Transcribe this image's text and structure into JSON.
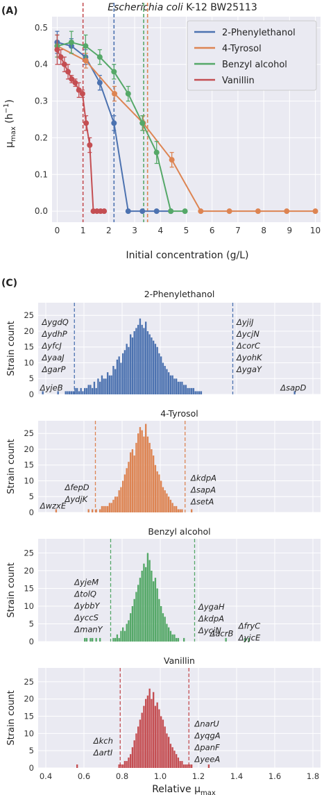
{
  "panel_a": {
    "letter": "(A)",
    "title_italic": "Escherichia coli",
    "title_rest": " K-12 BW25113",
    "xlabel": "Initial concentration (g/L)",
    "ylabel_main": "μ",
    "ylabel_sub": "max",
    "ylabel_unit_open": " (h",
    "ylabel_unit_exp": "−1",
    "ylabel_unit_close": ")"
  },
  "panel_c": {
    "letter": "(C)",
    "ylabel": "Strain count",
    "xlabel_main": "Relative μ",
    "xlabel_sub": "max"
  },
  "colors": {
    "2-Phenylethanol": "#4c72b0",
    "4-Tyrosol": "#dd8452",
    "Benzyl alcohol": "#55a868",
    "Vanillin": "#c44e52"
  },
  "chart_data": [
    {
      "type": "line",
      "title": "Escherichia coli K-12 BW25113",
      "xlabel": "Initial concentration (g/L)",
      "ylabel": "μmax (h−1)",
      "xlim": [
        -0.2,
        10.2
      ],
      "ylim": [
        -0.03,
        0.53
      ],
      "xticks": [
        0,
        1,
        2,
        3,
        4,
        5,
        6,
        7,
        8,
        9,
        10
      ],
      "yticks": [
        0.0,
        0.1,
        0.2,
        0.3,
        0.4,
        0.5
      ],
      "grid": true,
      "legend": "top-right",
      "series": [
        {
          "name": "2-Phenylethanol",
          "x": [
            0,
            0.55,
            1.1,
            1.65,
            2.2,
            2.75,
            3.3,
            3.85,
            4.4
          ],
          "y": [
            0.46,
            0.45,
            0.42,
            0.35,
            0.24,
            0.0,
            0.0,
            0.0,
            0.0
          ],
          "err": [
            0.03,
            0.02,
            0.02,
            0.02,
            0.02,
            0,
            0,
            0,
            0
          ],
          "threshold": 2.2
        },
        {
          "name": "4-Tyrosol",
          "x": [
            0,
            1.11,
            2.22,
            3.33,
            4.44,
            5.56,
            6.67,
            7.78,
            8.89,
            10.0
          ],
          "y": [
            0.45,
            0.41,
            0.32,
            0.24,
            0.14,
            0.0,
            0.0,
            0.0,
            0.0,
            0.0
          ],
          "err": [
            0.03,
            0.02,
            0.02,
            0.02,
            0.02,
            0,
            0,
            0,
            0,
            0
          ],
          "threshold": 3.5
        },
        {
          "name": "Benzyl alcohol",
          "x": [
            0,
            0.55,
            1.1,
            1.65,
            2.2,
            2.75,
            3.3,
            3.85,
            4.4,
            4.95
          ],
          "y": [
            0.45,
            0.46,
            0.45,
            0.42,
            0.38,
            0.32,
            0.24,
            0.16,
            0.0,
            0.0
          ],
          "err": [
            0.03,
            0.03,
            0.03,
            0.02,
            0.02,
            0.02,
            0.02,
            0.03,
            0,
            0
          ],
          "threshold": 3.35
        },
        {
          "name": "Vanillin",
          "x": [
            0,
            0.14,
            0.28,
            0.42,
            0.56,
            0.7,
            0.84,
            0.98,
            1.12,
            1.26,
            1.4,
            1.54,
            1.68,
            1.82
          ],
          "y": [
            0.44,
            0.42,
            0.4,
            0.38,
            0.36,
            0.35,
            0.33,
            0.32,
            0.24,
            0.18,
            0.0,
            0.0,
            0.0,
            0.0
          ],
          "err": [
            0.04,
            0.02,
            0.02,
            0.02,
            0.01,
            0.01,
            0.02,
            0.01,
            0.02,
            0.02,
            0,
            0,
            0,
            0
          ],
          "threshold": 1.0
        }
      ]
    },
    {
      "type": "bar",
      "subplots": [
        {
          "title": "2-Phenylethanol",
          "xlim": [
            0.36,
            1.84
          ],
          "ylim": [
            0,
            29
          ],
          "xticks": [
            0.4,
            0.6,
            0.8,
            1.0,
            1.2,
            1.4,
            1.6,
            1.8
          ],
          "yticks": [
            0,
            5,
            10,
            15,
            20,
            25
          ],
          "bin_start": 0.38,
          "bin_width": 0.01,
          "counts": [
            1,
            0,
            0,
            0,
            0,
            0,
            0,
            0,
            1,
            0,
            0,
            0,
            1,
            1,
            1,
            1,
            1,
            2,
            2,
            1,
            2,
            1,
            2,
            2,
            3,
            3,
            2,
            4,
            2,
            5,
            4,
            6,
            5,
            5,
            7,
            6,
            6,
            9,
            8,
            11,
            12,
            10,
            13,
            14,
            16,
            15,
            19,
            18,
            20,
            21,
            22,
            24,
            22,
            21,
            23,
            20,
            19,
            18,
            17,
            16,
            15,
            13,
            12,
            10,
            9,
            8,
            7,
            6,
            6,
            5,
            5,
            4,
            4,
            4,
            3,
            3,
            2,
            2,
            2,
            2,
            1,
            1,
            1,
            1,
            0,
            0,
            0,
            0,
            0,
            0,
            0,
            0,
            0,
            0,
            0,
            0,
            0,
            0,
            0,
            0,
            0,
            0,
            0,
            0,
            0,
            0,
            0,
            0,
            0,
            0,
            0,
            0,
            0,
            0,
            0,
            0,
            0,
            0,
            0,
            0,
            0,
            0,
            0,
            0,
            0,
            0,
            0,
            0,
            0,
            0,
            0,
            0,
            1
          ],
          "thresholds": [
            0.55,
            1.38
          ],
          "annotations": [
            {
              "lines": [
                "ΔyjeB"
              ],
              "x": 0.37,
              "anchor": "start",
              "y": 1.2
            },
            {
              "lines": [
                "ΔygdQ",
                "ΔydhP",
                "ΔyfcJ",
                "ΔyaaJ",
                "ΔgarP"
              ],
              "x": 0.38,
              "anchor": "start",
              "y": 22
            },
            {
              "lines": [
                "ΔyjiJ",
                "ΔycjN",
                "ΔcorC",
                "ΔyohK",
                "ΔygaY"
              ],
              "x": 1.4,
              "anchor": "start",
              "y": 22
            },
            {
              "lines": [
                "ΔsapD"
              ],
              "x": 1.63,
              "anchor": "start",
              "y": 1.2
            }
          ]
        },
        {
          "title": "4-Tyrosol",
          "xlim": [
            0.36,
            1.84
          ],
          "ylim": [
            0,
            29
          ],
          "xticks": [
            0.4,
            0.6,
            0.8,
            1.0,
            1.2,
            1.4,
            1.6,
            1.8
          ],
          "yticks": [
            0,
            5,
            10,
            15,
            20,
            25
          ],
          "bin_start": 0.38,
          "bin_width": 0.01,
          "counts": [
            0,
            0,
            0,
            0,
            0,
            0,
            0,
            1,
            0,
            0,
            0,
            0,
            0,
            0,
            0,
            0,
            0,
            0,
            0,
            0,
            0,
            0,
            0,
            0,
            1,
            0,
            1,
            0,
            1,
            0,
            1,
            2,
            2,
            2,
            2,
            3,
            3,
            4,
            5,
            5,
            7,
            8,
            10,
            12,
            14,
            16,
            19,
            20,
            18,
            22,
            25,
            27,
            26,
            24,
            28,
            24,
            22,
            20,
            18,
            15,
            13,
            12,
            10,
            8,
            7,
            6,
            5,
            4,
            3,
            2,
            2,
            1,
            1,
            1,
            0,
            0,
            0,
            0,
            1
          ],
          "thresholds": [
            0.66,
            1.13
          ],
          "annotations": [
            {
              "lines": [
                "ΔwzxE"
              ],
              "x": 0.37,
              "anchor": "start",
              "y": 1.2
            },
            {
              "lines": [
                "ΔfepD",
                "ΔydjK"
              ],
              "x": 0.5,
              "anchor": "start",
              "y": 7
            },
            {
              "lines": [
                "ΔkdpA",
                "ΔsapA",
                "ΔsetA"
              ],
              "x": 1.16,
              "anchor": "start",
              "y": 10
            }
          ]
        },
        {
          "title": "Benzyl alcohol",
          "xlim": [
            0.36,
            1.84
          ],
          "ylim": [
            0,
            29
          ],
          "xticks": [
            0.4,
            0.6,
            0.8,
            1.0,
            1.2,
            1.4,
            1.6,
            1.8
          ],
          "yticks": [
            0,
            5,
            10,
            15,
            20,
            25
          ],
          "bin_start": 0.6,
          "bin_width": 0.01,
          "counts": [
            1,
            1,
            0,
            1,
            1,
            0,
            1,
            0,
            1,
            0,
            0,
            0,
            0,
            0,
            0,
            1,
            1,
            2,
            1,
            3,
            4,
            3,
            5,
            6,
            8,
            10,
            12,
            14,
            16,
            18,
            20,
            22,
            21,
            25,
            23,
            20,
            17,
            18,
            15,
            12,
            10,
            8,
            7,
            5,
            4,
            3,
            2,
            2,
            1,
            1,
            0,
            0,
            1,
            0,
            0,
            0,
            0,
            0,
            0,
            0,
            0,
            0,
            0,
            0,
            0,
            0,
            0,
            0,
            0,
            0,
            0,
            0,
            0,
            0,
            1,
            0,
            0,
            0,
            0,
            0,
            0,
            0,
            0,
            0,
            1,
            0,
            1
          ],
          "thresholds": [
            0.74,
            1.18
          ],
          "annotations": [
            {
              "lines": [
                "ΔyjeM",
                "ΔtolQ",
                "ΔybbY",
                "ΔyccS",
                "ΔmanY"
              ],
              "x": 0.55,
              "anchor": "start",
              "y": 16
            },
            {
              "lines": [
                "ΔygaH",
                "ΔkdpA",
                "ΔycjN"
              ],
              "x": 1.2,
              "anchor": "start",
              "y": 9
            },
            {
              "lines": [
                "ΔacrB"
              ],
              "x": 1.26,
              "anchor": "start",
              "y": 1.5
            },
            {
              "lines": [
                "ΔfryC",
                "ΔyjcE"
              ],
              "x": 1.41,
              "anchor": "start",
              "y": 3.6
            }
          ]
        },
        {
          "title": "Vanillin",
          "xlim": [
            0.36,
            1.84
          ],
          "ylim": [
            0,
            29
          ],
          "xticks": [
            0.4,
            0.6,
            0.8,
            1.0,
            1.2,
            1.4,
            1.6,
            1.8
          ],
          "yticks": [
            0,
            5,
            10,
            15,
            20,
            25
          ],
          "bin_start": 0.56,
          "bin_width": 0.01,
          "counts": [
            1,
            0,
            0,
            0,
            0,
            0,
            0,
            0,
            0,
            0,
            0,
            0,
            0,
            0,
            0,
            0,
            0,
            0,
            0,
            0,
            0,
            0,
            1,
            1,
            1,
            2,
            2,
            3,
            4,
            6,
            8,
            10,
            12,
            14,
            16,
            18,
            20,
            21,
            23,
            20,
            22,
            18,
            19,
            17,
            15,
            14,
            12,
            10,
            9,
            7,
            6,
            5,
            4,
            3,
            2,
            2,
            1,
            1,
            1,
            1,
            1,
            0,
            0,
            0,
            0,
            0,
            0,
            0,
            0,
            1
          ],
          "thresholds": [
            0.79,
            1.15
          ],
          "annotations": [
            {
              "lines": [
                "Δkch",
                "ΔartI"
              ],
              "x": 0.65,
              "anchor": "start",
              "y": 7
            },
            {
              "lines": [
                "ΔnarU",
                "ΔyqgA",
                "ΔpanF",
                "ΔyeeA"
              ],
              "x": 1.18,
              "anchor": "start",
              "y": 12
            }
          ]
        }
      ],
      "xlabel": "Relative μmax",
      "ylabel": "Strain count"
    }
  ]
}
